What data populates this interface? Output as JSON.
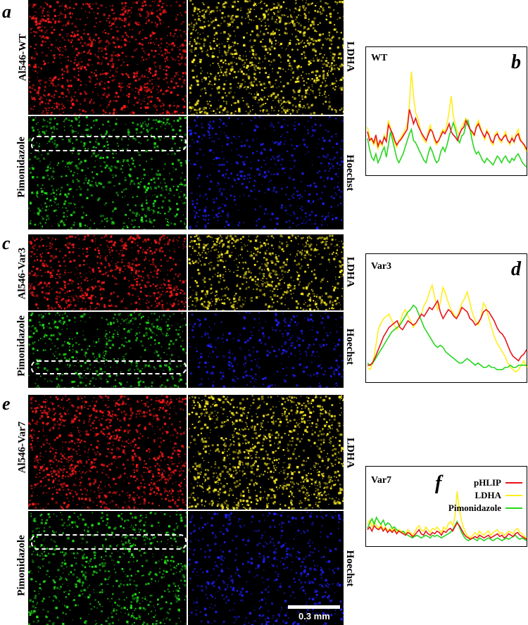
{
  "figure": {
    "colors": {
      "phlip": "#e8141c",
      "ldha": "#ffee1c",
      "pimonidazole": "#27d61e",
      "hoechst": "#1a1ad8",
      "red_tissue": "#ff1a1a",
      "yellow_tissue": "#ffee20",
      "green_tissue": "#22e01a",
      "blue_tissue": "#2020ff"
    },
    "rows": [
      {
        "letter": "a",
        "sample_label": "Al546-WT",
        "top_right_label": "LDHA",
        "bottom_left_label": "Pimonidazole",
        "bottom_right_label": "Hoechst"
      },
      {
        "letter": "c",
        "sample_label": "Al546-Var3",
        "top_right_label": "LDHA",
        "bottom_left_label": "Pimonidazole",
        "bottom_right_label": "Hoechst"
      },
      {
        "letter": "e",
        "sample_label": "Al546-Var7",
        "top_right_label": "LDHA",
        "bottom_left_label": "Pimonidazole",
        "bottom_right_label": "Hoechst"
      }
    ],
    "scale_bar_label": "0.3 mm"
  },
  "chart_data": [
    {
      "type": "line",
      "panel": "b",
      "title": "WT",
      "xlabel": "",
      "ylabel": "",
      "ylim": [
        0,
        100
      ],
      "series": [
        {
          "name": "pHLIP",
          "values": [
            38,
            30,
            32,
            28,
            35,
            25,
            30,
            27,
            33,
            29,
            44,
            40,
            36,
            30,
            26,
            29,
            31,
            34,
            37,
            40,
            58,
            52,
            45,
            50,
            44,
            40,
            36,
            33,
            30,
            35,
            40,
            38,
            32,
            28,
            30,
            34,
            38,
            36,
            40,
            45,
            38,
            35,
            33,
            30,
            36,
            40,
            42,
            48,
            44,
            40,
            38,
            35,
            42,
            45,
            40,
            36,
            33,
            38,
            35,
            30,
            28,
            34,
            36,
            32,
            30,
            33,
            35,
            30,
            28,
            32,
            29,
            34,
            36,
            30,
            28,
            26,
            22
          ]
        },
        {
          "name": "LDHA",
          "values": [
            42,
            34,
            30,
            26,
            31,
            22,
            28,
            25,
            35,
            30,
            48,
            42,
            34,
            28,
            24,
            30,
            33,
            36,
            40,
            44,
            62,
            92,
            70,
            55,
            50,
            42,
            34,
            30,
            28,
            38,
            44,
            38,
            30,
            26,
            29,
            36,
            40,
            38,
            45,
            56,
            70,
            52,
            44,
            38,
            35,
            42,
            46,
            50,
            46,
            40,
            36,
            34,
            44,
            48,
            42,
            36,
            30,
            40,
            36,
            28,
            26,
            36,
            38,
            30,
            28,
            34,
            38,
            30,
            26,
            34,
            28,
            36,
            40,
            32,
            28,
            24,
            20
          ]
        },
        {
          "name": "Pimonidazole",
          "values": [
            32,
            22,
            15,
            12,
            18,
            10,
            14,
            20,
            24,
            15,
            26,
            38,
            30,
            22,
            14,
            10,
            14,
            18,
            24,
            30,
            36,
            40,
            30,
            28,
            24,
            20,
            16,
            12,
            10,
            18,
            24,
            20,
            14,
            10,
            12,
            20,
            24,
            20,
            26,
            34,
            40,
            46,
            40,
            32,
            28,
            34,
            36,
            44,
            48,
            40,
            30,
            22,
            18,
            20,
            16,
            12,
            10,
            14,
            12,
            10,
            8,
            12,
            16,
            14,
            10,
            14,
            16,
            12,
            10,
            14,
            12,
            16,
            18,
            14,
            10,
            8,
            6
          ]
        }
      ]
    },
    {
      "type": "line",
      "panel": "d",
      "title": "Var3",
      "xlabel": "",
      "ylabel": "",
      "ylim": [
        0,
        100
      ],
      "series": [
        {
          "name": "pHLIP",
          "values": [
            14,
            14,
            17,
            22,
            28,
            34,
            40,
            44,
            48,
            50,
            52,
            54,
            48,
            46,
            50,
            54,
            52,
            50,
            52,
            56,
            60,
            58,
            62,
            66,
            64,
            68,
            72,
            62,
            56,
            60,
            64,
            62,
            58,
            56,
            60,
            66,
            64,
            62,
            56,
            54,
            50,
            52,
            56,
            62,
            64,
            62,
            58,
            54,
            48,
            44,
            42,
            38,
            32,
            26,
            22,
            20,
            18,
            22,
            24,
            28
          ]
        },
        {
          "name": "LDHA",
          "values": [
            12,
            10,
            16,
            30,
            46,
            52,
            56,
            58,
            60,
            54,
            50,
            46,
            52,
            60,
            64,
            58,
            54,
            48,
            52,
            56,
            60,
            68,
            72,
            80,
            86,
            74,
            64,
            70,
            84,
            78,
            70,
            64,
            60,
            56,
            62,
            70,
            74,
            80,
            70,
            60,
            54,
            50,
            56,
            70,
            66,
            56,
            48,
            40,
            34,
            30,
            26,
            22,
            16,
            12,
            10,
            8,
            10,
            14,
            18,
            12
          ]
        },
        {
          "name": "Pimonidazole",
          "values": [
            16,
            14,
            16,
            20,
            24,
            28,
            32,
            36,
            40,
            44,
            46,
            48,
            50,
            54,
            58,
            62,
            64,
            68,
            66,
            60,
            54,
            48,
            44,
            40,
            36,
            32,
            30,
            32,
            30,
            26,
            24,
            22,
            20,
            18,
            16,
            16,
            18,
            20,
            18,
            16,
            14,
            16,
            14,
            12,
            12,
            14,
            12,
            12,
            10,
            10,
            10,
            12,
            12,
            14,
            12,
            12,
            14,
            14,
            14,
            14
          ]
        }
      ]
    },
    {
      "type": "line",
      "panel": "f",
      "title": "Var7",
      "xlabel": "",
      "ylabel": "",
      "ylim": [
        0,
        100
      ],
      "series": [
        {
          "name": "pHLIP",
          "values": [
            22,
            26,
            20,
            28,
            24,
            22,
            26,
            20,
            24,
            18,
            22,
            18,
            22,
            16,
            20,
            18,
            16,
            14,
            18,
            16,
            12,
            14,
            18,
            22,
            16,
            14,
            20,
            16,
            14,
            18,
            16,
            20,
            18,
            14,
            20,
            18,
            22,
            24,
            20,
            26,
            32,
            28,
            22,
            16,
            12,
            10,
            8,
            10,
            12,
            10,
            14,
            12,
            10,
            12,
            14,
            10,
            12,
            14,
            16,
            12,
            14,
            10,
            12,
            16,
            14,
            12,
            16,
            18,
            14,
            12,
            10,
            8
          ]
        },
        {
          "name": "LDHA",
          "values": [
            30,
            36,
            26,
            34,
            28,
            24,
            30,
            22,
            26,
            20,
            24,
            20,
            26,
            18,
            22,
            20,
            18,
            16,
            22,
            18,
            14,
            18,
            24,
            28,
            22,
            20,
            26,
            22,
            18,
            24,
            22,
            26,
            22,
            18,
            26,
            22,
            30,
            34,
            28,
            40,
            78,
            52,
            34,
            24,
            16,
            12,
            10,
            14,
            18,
            14,
            20,
            16,
            14,
            18,
            20,
            14,
            18,
            20,
            22,
            16,
            18,
            14,
            16,
            20,
            18,
            16,
            22,
            24,
            18,
            16,
            12,
            10
          ]
        },
        {
          "name": "Pimonidazole",
          "values": [
            24,
            32,
            38,
            30,
            40,
            34,
            30,
            36,
            28,
            32,
            30,
            24,
            26,
            22,
            20,
            18,
            20,
            16,
            14,
            12,
            10,
            12,
            14,
            12,
            10,
            12,
            14,
            12,
            10,
            14,
            12,
            14,
            12,
            10,
            12,
            14,
            16,
            18,
            22,
            28,
            34,
            26,
            18,
            12,
            8,
            6,
            8,
            10,
            8,
            6,
            10,
            8,
            6,
            8,
            10,
            8,
            6,
            8,
            10,
            8,
            6,
            8,
            10,
            8,
            10,
            12,
            14,
            10,
            8,
            10,
            8,
            6
          ]
        }
      ]
    }
  ]
}
